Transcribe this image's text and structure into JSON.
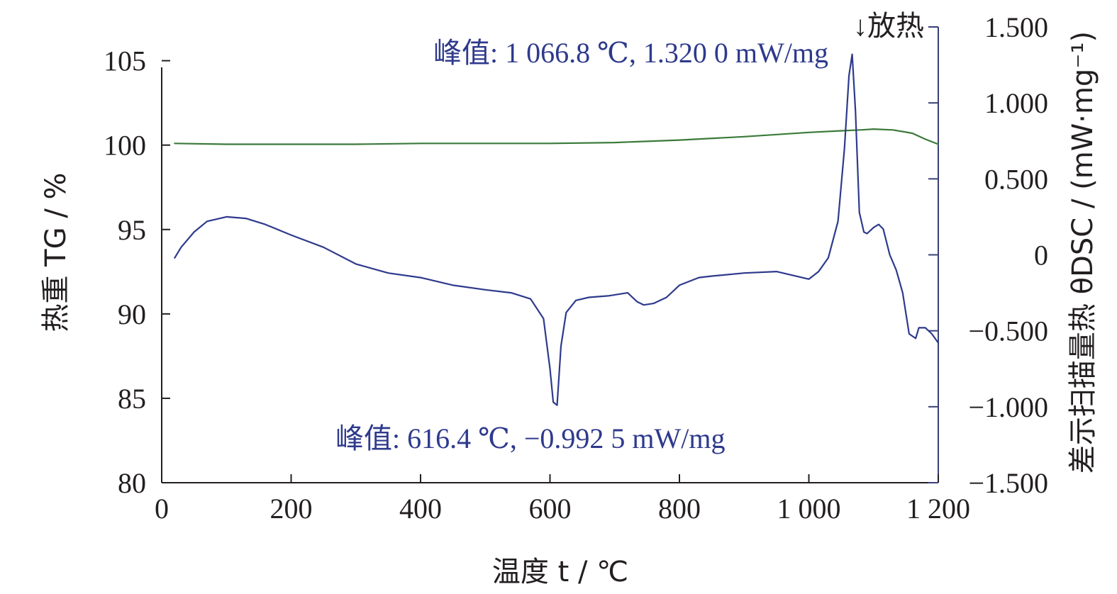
{
  "chart_data": {
    "type": "line",
    "xlabel": "温度 t / ℃",
    "ylabel_left": "热重 TG / %",
    "ylabel_right": "差示扫描量热 θDSC / (mW·mg⁻¹)",
    "xlim": [
      0,
      1200
    ],
    "ylim_left": [
      80,
      107
    ],
    "ylim_right": [
      -1.5,
      1.5
    ],
    "x_ticks": [
      0,
      200,
      400,
      600,
      800,
      1000,
      1200
    ],
    "x_tick_labels": [
      "0",
      "200",
      "400",
      "600",
      "800",
      "1 000",
      "1 200"
    ],
    "y_left_ticks": [
      80,
      85,
      90,
      95,
      100,
      105
    ],
    "y_left_tick_labels": [
      "80",
      "85",
      "90",
      "95",
      "100",
      "105"
    ],
    "y_right_ticks": [
      -1.5,
      -1.0,
      -0.5,
      0,
      0.5,
      1.0,
      1.5
    ],
    "y_right_tick_labels": [
      "−1.500",
      "−1.000",
      "−0.500",
      "0",
      "0.500",
      "1.000",
      "1.500"
    ],
    "colors": {
      "tg": "#3a7a3a",
      "dsc": "#2e3a8c",
      "axis": "#231f20",
      "right_axis": "#3a3f7a"
    },
    "series": [
      {
        "axis": "left",
        "x": [
          20,
          100,
          200,
          300,
          400,
          500,
          600,
          700,
          800,
          900,
          1000,
          1050,
          1080,
          1100,
          1130,
          1160,
          1180,
          1200
        ],
        "values": [
          100.1,
          100.05,
          100.05,
          100.05,
          100.1,
          100.1,
          100.1,
          100.15,
          100.3,
          100.5,
          100.75,
          100.85,
          100.9,
          100.95,
          100.9,
          100.7,
          100.35,
          100.05
        ]
      },
      {
        "axis": "right",
        "x": [
          20,
          30,
          50,
          70,
          100,
          130,
          160,
          200,
          250,
          300,
          350,
          400,
          450,
          500,
          540,
          570,
          590,
          600,
          605,
          611,
          617,
          625,
          640,
          660,
          690,
          720,
          735,
          745,
          760,
          780,
          800,
          830,
          850,
          900,
          950,
          1000,
          1015,
          1030,
          1045,
          1055,
          1062,
          1067,
          1072,
          1078,
          1085,
          1090,
          1100,
          1108,
          1115,
          1125,
          1135,
          1145,
          1155,
          1165,
          1170,
          1180,
          1190,
          1200
        ],
        "values": [
          -0.02,
          0.05,
          0.15,
          0.22,
          0.25,
          0.24,
          0.2,
          0.13,
          0.05,
          -0.06,
          -0.12,
          -0.15,
          -0.2,
          -0.23,
          -0.25,
          -0.29,
          -0.42,
          -0.75,
          -0.97,
          -0.99,
          -0.6,
          -0.38,
          -0.3,
          -0.28,
          -0.27,
          -0.25,
          -0.31,
          -0.33,
          -0.32,
          -0.28,
          -0.2,
          -0.15,
          -0.14,
          -0.12,
          -0.11,
          -0.16,
          -0.11,
          -0.02,
          0.22,
          0.7,
          1.18,
          1.32,
          0.95,
          0.28,
          0.15,
          0.14,
          0.18,
          0.2,
          0.17,
          0.0,
          -0.1,
          -0.25,
          -0.52,
          -0.55,
          -0.48,
          -0.48,
          -0.52,
          -0.58
        ]
      }
    ],
    "annotations": [
      {
        "text": "峰值: 1 066.8 ℃, 1.320 0 mW/mg",
        "x": 1066.8,
        "y": 1.32,
        "axis": "right"
      },
      {
        "text": "峰值: 616.4 ℃, −0.992 5 mW/mg",
        "x": 616.4,
        "y": -0.9925,
        "axis": "right"
      },
      {
        "text": "↓放热"
      }
    ]
  }
}
